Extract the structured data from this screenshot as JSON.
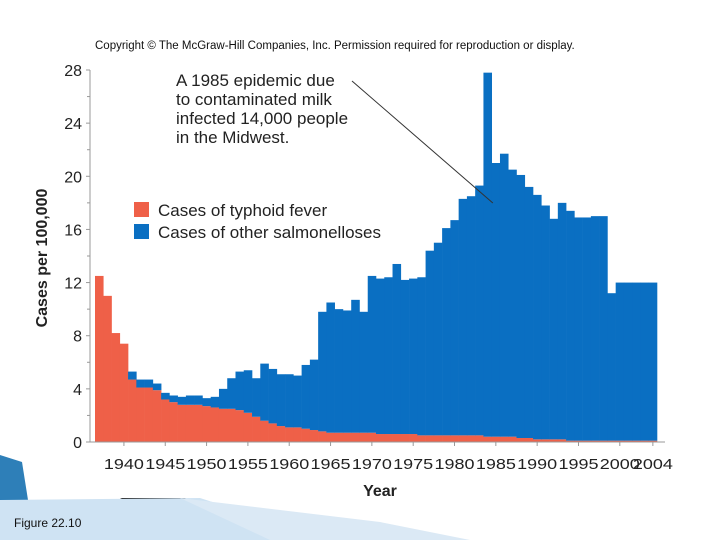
{
  "copyright": "Copyright © The McGraw-Hill Companies, Inc. Permission required for reproduction or display.",
  "caption": "Figure 22.10",
  "colors": {
    "typhoid": "#ef6048",
    "salmonellosis": "#0a6fc2",
    "axis": "#999999",
    "text": "#222222"
  },
  "chart_data": {
    "type": "bar",
    "stacked": true,
    "ylabel": "Cases per 100,000",
    "xlabel": "Year",
    "ylim": [
      0,
      28
    ],
    "yticks": [
      0,
      4,
      8,
      12,
      16,
      20,
      24,
      28
    ],
    "xtick_labels": [
      "1940",
      "1945",
      "1950",
      "1955",
      "1960",
      "1965",
      "1970",
      "1975",
      "1980",
      "1985",
      "1990",
      "1995",
      "2000",
      "2004"
    ],
    "years": [
      1937,
      1938,
      1939,
      1940,
      1941,
      1942,
      1943,
      1944,
      1945,
      1946,
      1947,
      1948,
      1949,
      1950,
      1951,
      1952,
      1953,
      1954,
      1955,
      1956,
      1957,
      1958,
      1959,
      1960,
      1961,
      1962,
      1963,
      1964,
      1965,
      1966,
      1967,
      1968,
      1969,
      1970,
      1971,
      1972,
      1973,
      1974,
      1975,
      1976,
      1977,
      1978,
      1979,
      1980,
      1981,
      1982,
      1983,
      1984,
      1985,
      1986,
      1987,
      1988,
      1989,
      1990,
      1991,
      1992,
      1993,
      1994,
      1995,
      1996,
      1997,
      1998,
      1999,
      2000,
      2001,
      2002,
      2003,
      2004
    ],
    "series": [
      {
        "name": "Cases of typhoid fever",
        "color_key": "typhoid",
        "values": [
          12.5,
          11.0,
          8.2,
          7.4,
          4.7,
          4.1,
          4.1,
          3.9,
          3.2,
          3.0,
          2.8,
          2.8,
          2.8,
          2.7,
          2.6,
          2.5,
          2.5,
          2.4,
          2.2,
          1.9,
          1.6,
          1.4,
          1.2,
          1.1,
          1.1,
          1.0,
          0.9,
          0.8,
          0.7,
          0.7,
          0.7,
          0.7,
          0.7,
          0.7,
          0.6,
          0.6,
          0.6,
          0.6,
          0.6,
          0.5,
          0.5,
          0.5,
          0.5,
          0.5,
          0.5,
          0.5,
          0.5,
          0.4,
          0.4,
          0.4,
          0.4,
          0.3,
          0.3,
          0.2,
          0.2,
          0.2,
          0.2,
          0.1,
          0.1,
          0.1,
          0.1,
          0.1,
          0.1,
          0.1,
          0.1,
          0.1,
          0.1,
          0.1
        ]
      },
      {
        "name": "Cases of other salmonelloses",
        "color_key": "salmonellosis",
        "values": [
          0,
          0,
          0,
          0,
          0.6,
          0.6,
          0.6,
          0.5,
          0.5,
          0.5,
          0.6,
          0.7,
          0.7,
          0.6,
          0.8,
          1.5,
          2.3,
          2.9,
          3.2,
          2.9,
          4.3,
          4.1,
          3.9,
          4.0,
          3.9,
          4.8,
          5.3,
          9.0,
          9.8,
          9.3,
          9.2,
          10.0,
          9.1,
          11.8,
          11.7,
          11.8,
          12.8,
          11.6,
          11.7,
          11.9,
          13.9,
          14.5,
          15.6,
          16.2,
          17.8,
          18.0,
          18.8,
          27.4,
          20.6,
          21.3,
          20.1,
          19.8,
          18.9,
          18.4,
          17.6,
          16.6,
          17.8,
          17.3,
          16.8,
          16.8,
          16.9,
          16.9,
          11.1,
          11.9,
          11.9,
          11.9,
          11.9,
          11.9
        ]
      }
    ],
    "annotation": {
      "lines": [
        "A 1985 epidemic due",
        "to contaminated milk",
        "infected 14,000 people",
        "in the Midwest."
      ],
      "target_year": 1985
    }
  }
}
